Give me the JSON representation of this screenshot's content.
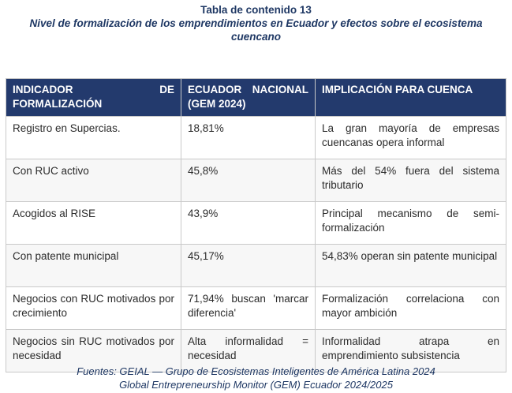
{
  "caption": {
    "title": "Tabla de contenido 13",
    "subtitle": "Nivel de formalización de los emprendimientos en Ecuador y efectos sobre el ecosistema cuencano"
  },
  "table": {
    "headers": [
      "INDICADOR DE FORMALIZACIÓN",
      "ECUADOR NACIONAL (GEM 2024)",
      "IMPLICACIÓN PARA CUENCA"
    ],
    "rows": [
      [
        "Registro en Supercias.",
        "18,81%",
        "La gran mayoría de empresas cuencanas opera informal"
      ],
      [
        "Con RUC activo",
        "45,8%",
        "Más del 54% fuera del sistema tributario"
      ],
      [
        "Acogidos al RISE",
        "43,9%",
        "Principal mecanismo de semi-formalización"
      ],
      [
        "Con patente municipal",
        "45,17%",
        "54,83% operan sin patente municipal"
      ],
      [
        "Negocios con RUC motivados por crecimiento",
        "71,94% buscan 'marcar diferencia'",
        "Formalización correlaciona con mayor ambición"
      ],
      [
        "Negocios sin RUC motivados por necesidad",
        "Alta informalidad = necesidad",
        "Informalidad atrapa en emprendimiento subsistencia"
      ]
    ]
  },
  "sources": {
    "line1": "Fuentes: GEIAL — Grupo de Ecosistemas Inteligentes de América Latina 2024",
    "line2": "Global Entrepreneurship Monitor (GEM) Ecuador 2024/2025"
  },
  "colors": {
    "header_background": "#233a6d",
    "caption_text": "#1f3864",
    "border": "#c9c9c9"
  }
}
